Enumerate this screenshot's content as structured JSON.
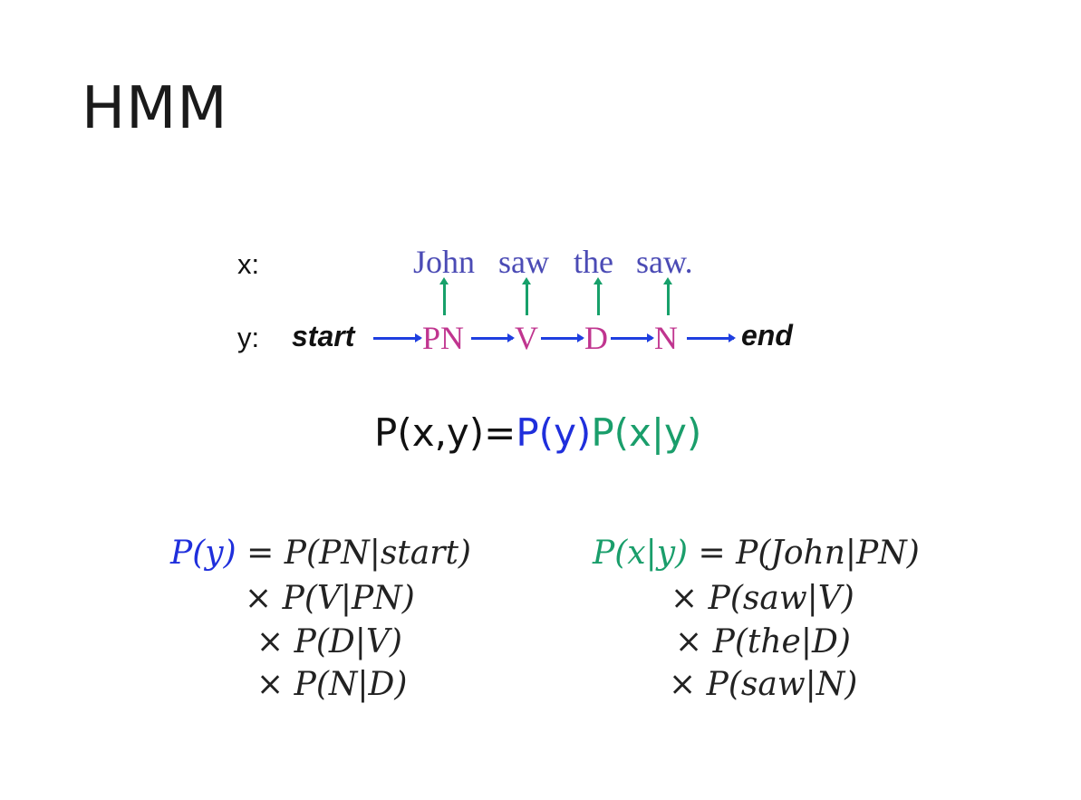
{
  "title": "HMM",
  "labels": {
    "x": "x:",
    "y": "y:"
  },
  "words": [
    "John",
    "saw",
    "the",
    "saw."
  ],
  "tags": [
    "PN",
    "V",
    "D",
    "N"
  ],
  "boundary": {
    "start": "start",
    "end": "end"
  },
  "joint": {
    "lhs": "P(x,y)=",
    "py": "P(y)",
    "pxy": "P(x|y)"
  },
  "py_expansion": {
    "lhs": "P(y)",
    "eq": "= P(PN|start)",
    "terms": [
      "× P(V|PN)",
      "× P(D|V)",
      "× P(N|D)"
    ]
  },
  "pxy_expansion": {
    "lhs": "P(x|y)",
    "eq": "= P(John|PN)",
    "terms": [
      "× P(saw|V)",
      "× P(the|D)",
      "× P(saw|N)"
    ]
  },
  "colors": {
    "transition": "#1f3fe0",
    "emission": "#17a06a",
    "tag": "#c0358f",
    "word": "#4b4bb5"
  }
}
